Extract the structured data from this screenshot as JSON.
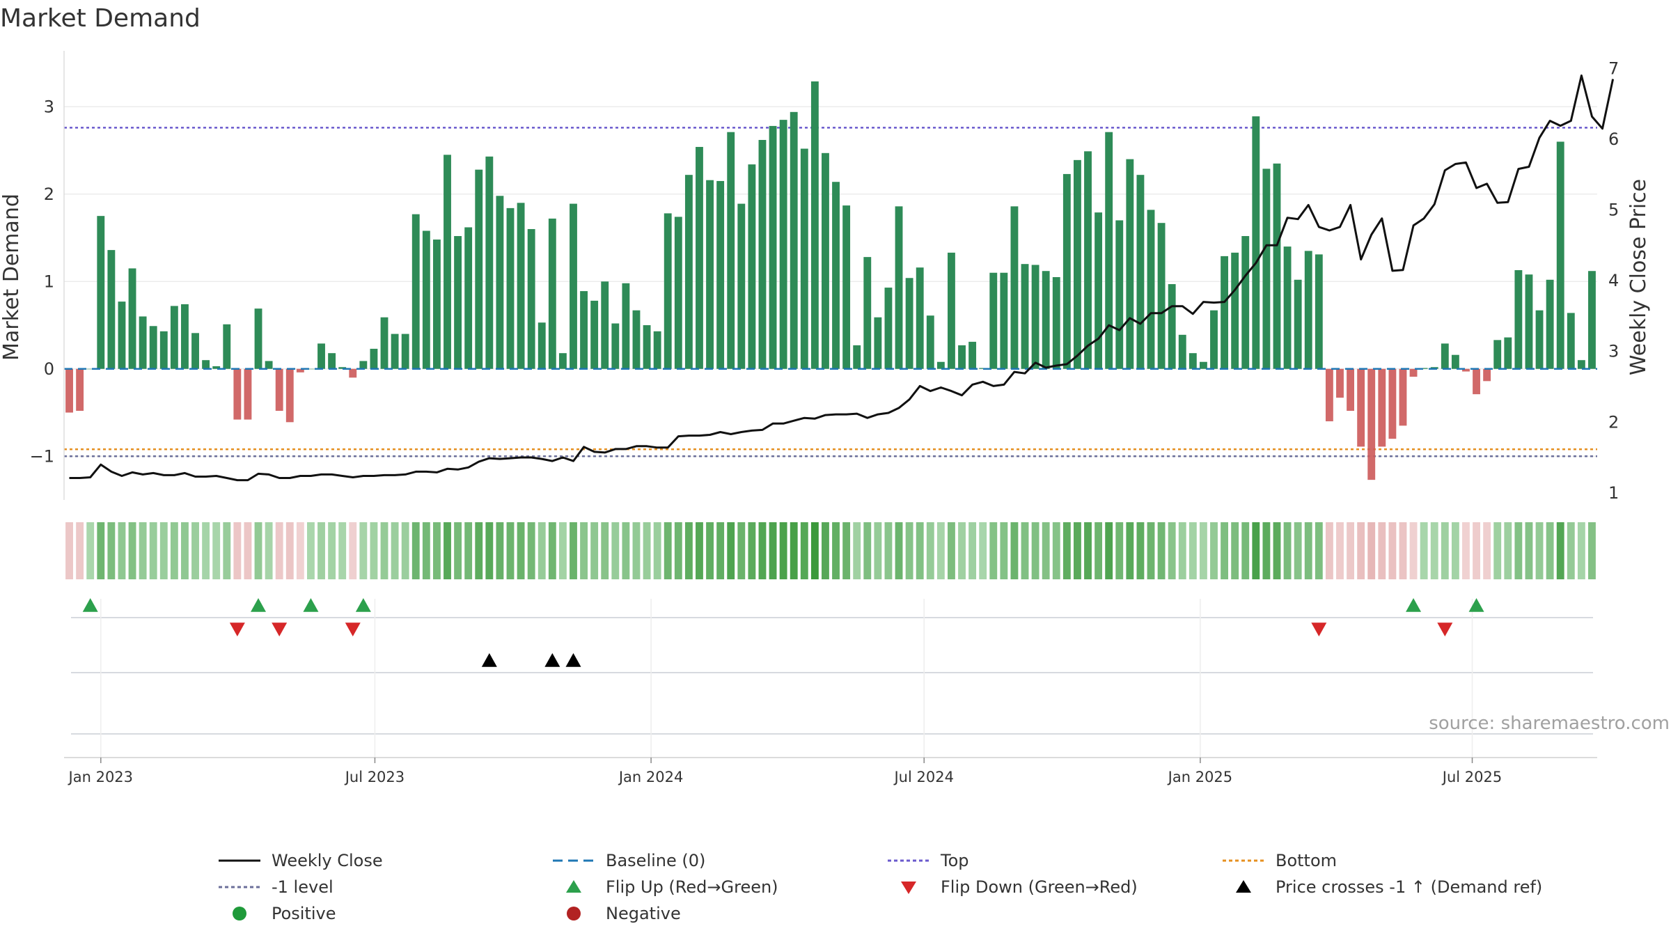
{
  "title": "Market Demand",
  "source": "source: sharemaestro.com",
  "colors": {
    "positive": "#2e8b57",
    "negative": "#cd5c5c",
    "close": "#111111",
    "baseline": "#1f77b4",
    "top": "#6a5acd",
    "bottom": "#e69020",
    "minus1": "#6b6f9a",
    "flip_up": "#2ca04c",
    "flip_down": "#d62728",
    "cross": "#000000",
    "positive_dot": "#1f9a3a",
    "negative_dot": "#b22222"
  },
  "legend": [
    {
      "key": "close",
      "label": "Weekly Close",
      "symbol": "line-solid"
    },
    {
      "key": "baseline",
      "label": "Baseline (0)",
      "symbol": "line-dash"
    },
    {
      "key": "top",
      "label": "Top",
      "symbol": "line-dot"
    },
    {
      "key": "bottom",
      "label": "Bottom",
      "symbol": "line-dot"
    },
    {
      "key": "minus1",
      "label": "-1 level",
      "symbol": "line-dot"
    },
    {
      "key": "flip_up",
      "label": "Flip Up (Red→Green)",
      "symbol": "tri-up"
    },
    {
      "key": "flip_down",
      "label": "Flip Down (Green→Red)",
      "symbol": "tri-down"
    },
    {
      "key": "cross",
      "label": "Price crosses -1 ↑ (Demand ref)",
      "symbol": "tri-up"
    },
    {
      "key": "positive_dot",
      "label": "Positive",
      "symbol": "dot"
    },
    {
      "key": "negative_dot",
      "label": "Negative",
      "symbol": "dot"
    }
  ],
  "chart_data": {
    "type": "bar",
    "title": "Market Demand",
    "ylabel": "Market Demand",
    "y2label": "Weekly Close Price",
    "ylim": [
      -1.5,
      3.6
    ],
    "y2lim": [
      0.9,
      7.2
    ],
    "yticks": [
      -1,
      0,
      1,
      2,
      3
    ],
    "ytick_labels": [
      "−1",
      "0",
      "1",
      "2",
      "3"
    ],
    "y2ticks": [
      1,
      2,
      3,
      4,
      5,
      6,
      7
    ],
    "y2tick_labels": [
      "1",
      "2",
      "3",
      "4",
      "5",
      "6",
      "7"
    ],
    "x_start": "2022-12-12",
    "x_step_weeks": 1,
    "xticks": [
      {
        "label": "Jan 2023",
        "week": 3
      },
      {
        "label": "Jul 2023",
        "week": 29.1
      },
      {
        "label": "Jan 2024",
        "week": 55.4
      },
      {
        "label": "Jul 2024",
        "week": 81.4
      },
      {
        "label": "Jan 2025",
        "week": 107.7
      },
      {
        "label": "Jul 2025",
        "week": 133.6
      }
    ],
    "reference_lines": {
      "baseline": 0,
      "top": 2.76,
      "bottom": -0.92,
      "minus1_level": -1
    },
    "demand": [
      -0.5,
      -0.48,
      0,
      1.75,
      1.36,
      0.77,
      1.15,
      0.6,
      0.49,
      0.43,
      0.72,
      0.74,
      0.41,
      0.1,
      0.03,
      0.51,
      -0.58,
      -0.58,
      0.69,
      0.09,
      -0.48,
      -0.61,
      -0.04,
      0,
      0.29,
      0.18,
      0.02,
      -0.1,
      0.09,
      0.23,
      0.59,
      0.4,
      0.4,
      1.77,
      1.58,
      1.48,
      2.45,
      1.52,
      1.62,
      2.28,
      2.43,
      1.98,
      1.84,
      1.9,
      1.6,
      0.53,
      1.72,
      0.18,
      1.89,
      0.89,
      0.78,
      1.0,
      0.52,
      0.98,
      0.67,
      0.5,
      0.43,
      1.78,
      1.74,
      2.22,
      2.54,
      2.16,
      2.15,
      2.71,
      1.89,
      2.34,
      2.62,
      2.78,
      2.85,
      2.94,
      2.52,
      3.29,
      2.47,
      2.14,
      1.87,
      0.27,
      1.28,
      0.59,
      0.93,
      1.86,
      1.04,
      1.16,
      0.61,
      0.08,
      1.33,
      0.27,
      0.31,
      0.01,
      1.1,
      1.1,
      1.86,
      1.2,
      1.19,
      1.12,
      1.05,
      2.23,
      2.39,
      2.49,
      1.79,
      2.71,
      1.7,
      2.4,
      2.22,
      1.82,
      1.67,
      0.97,
      0.39,
      0.18,
      0.08,
      0.67,
      1.29,
      1.33,
      1.52,
      2.89,
      2.29,
      2.35,
      1.4,
      1.02,
      1.35,
      1.31,
      -0.6,
      -0.33,
      -0.48,
      -0.89,
      -1.27,
      -0.89,
      -0.8,
      -0.65,
      -0.09,
      0.01,
      0.02,
      0.29,
      0.16,
      -0.03,
      -0.29,
      -0.14,
      0.33,
      0.36,
      1.13,
      1.08,
      0.67,
      1.02,
      2.6,
      0.64,
      0.1,
      1.12
    ],
    "close": [
      1.21,
      1.21,
      1.22,
      1.4,
      1.3,
      1.24,
      1.29,
      1.26,
      1.28,
      1.25,
      1.25,
      1.28,
      1.23,
      1.23,
      1.24,
      1.21,
      1.18,
      1.18,
      1.27,
      1.26,
      1.21,
      1.21,
      1.24,
      1.24,
      1.26,
      1.26,
      1.24,
      1.22,
      1.24,
      1.24,
      1.25,
      1.25,
      1.26,
      1.3,
      1.3,
      1.29,
      1.34,
      1.33,
      1.36,
      1.44,
      1.49,
      1.48,
      1.49,
      1.5,
      1.5,
      1.48,
      1.45,
      1.5,
      1.45,
      1.65,
      1.58,
      1.57,
      1.62,
      1.62,
      1.66,
      1.66,
      1.64,
      1.64,
      1.8,
      1.81,
      1.81,
      1.82,
      1.86,
      1.83,
      1.86,
      1.88,
      1.89,
      1.98,
      1.98,
      2.02,
      2.06,
      2.05,
      2.1,
      2.11,
      2.11,
      2.12,
      2.06,
      2.11,
      2.13,
      2.2,
      2.32,
      2.51,
      2.44,
      2.49,
      2.44,
      2.38,
      2.53,
      2.57,
      2.51,
      2.53,
      2.71,
      2.69,
      2.84,
      2.77,
      2.8,
      2.82,
      2.94,
      3.08,
      3.18,
      3.37,
      3.3,
      3.47,
      3.39,
      3.54,
      3.54,
      3.64,
      3.64,
      3.53,
      3.7,
      3.69,
      3.7,
      3.87,
      4.07,
      4.25,
      4.5,
      4.5,
      4.89,
      4.87,
      5.07,
      4.76,
      4.71,
      4.76,
      5.07,
      4.3,
      4.65,
      4.88,
      4.14,
      4.15,
      4.78,
      4.88,
      5.08,
      5.56,
      5.65,
      5.67,
      5.31,
      5.37,
      5.1,
      5.11,
      5.58,
      5.61,
      6.02,
      6.26,
      6.19,
      6.26,
      6.9,
      6.32,
      6.15,
      6.85
    ],
    "flip_up_weeks": [
      2,
      18,
      23,
      28,
      128,
      134
    ],
    "flip_down_weeks": [
      16,
      20,
      27,
      119,
      131
    ],
    "cross_weeks": [
      40,
      46,
      48
    ]
  }
}
